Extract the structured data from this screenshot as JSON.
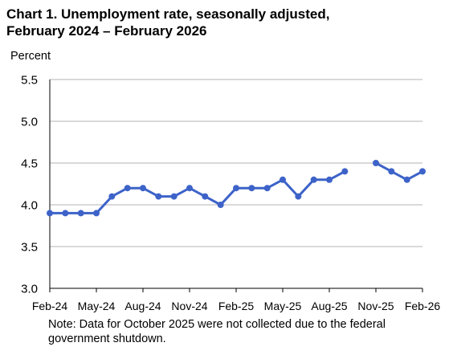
{
  "chart_data": {
    "type": "line",
    "title_lines": [
      "Chart 1. Unemployment rate, seasonally adjusted,",
      "February 2024 – February 2026"
    ],
    "ylabel": "Percent",
    "ylim": [
      3.0,
      5.5
    ],
    "yticks": [
      "3.0",
      "3.5",
      "4.0",
      "4.5",
      "5.0",
      "5.5"
    ],
    "xtick_labels": [
      "Feb-24",
      "May-24",
      "Aug-24",
      "Nov-24",
      "Feb-25",
      "May-25",
      "Aug-25",
      "Nov-25",
      "Feb-26"
    ],
    "grid": "horizontal",
    "legend": "none",
    "line_color": "#3d63c9",
    "gridline_color": "#b3b3b3",
    "series": [
      {
        "x": [
          "2024-02",
          "2024-03",
          "2024-04",
          "2024-05",
          "2024-06",
          "2024-07",
          "2024-08",
          "2024-09",
          "2024-10",
          "2024-11",
          "2024-12",
          "2025-01",
          "2025-02",
          "2025-03",
          "2025-04",
          "2025-05",
          "2025-06",
          "2025-07",
          "2025-08",
          "2025-09",
          "2025-10",
          "2025-11",
          "2025-12",
          "2026-01",
          "2026-02"
        ],
        "values": [
          3.9,
          3.9,
          3.9,
          3.9,
          4.1,
          4.2,
          4.2,
          4.1,
          4.1,
          4.2,
          4.1,
          4.0,
          4.2,
          4.2,
          4.2,
          4.3,
          4.1,
          4.3,
          4.3,
          4.4,
          null,
          4.5,
          4.4,
          4.3,
          4.4
        ]
      }
    ],
    "note_lines": [
      "Note: Data for October 2025 were not collected due to the federal",
      "government shutdown."
    ]
  }
}
